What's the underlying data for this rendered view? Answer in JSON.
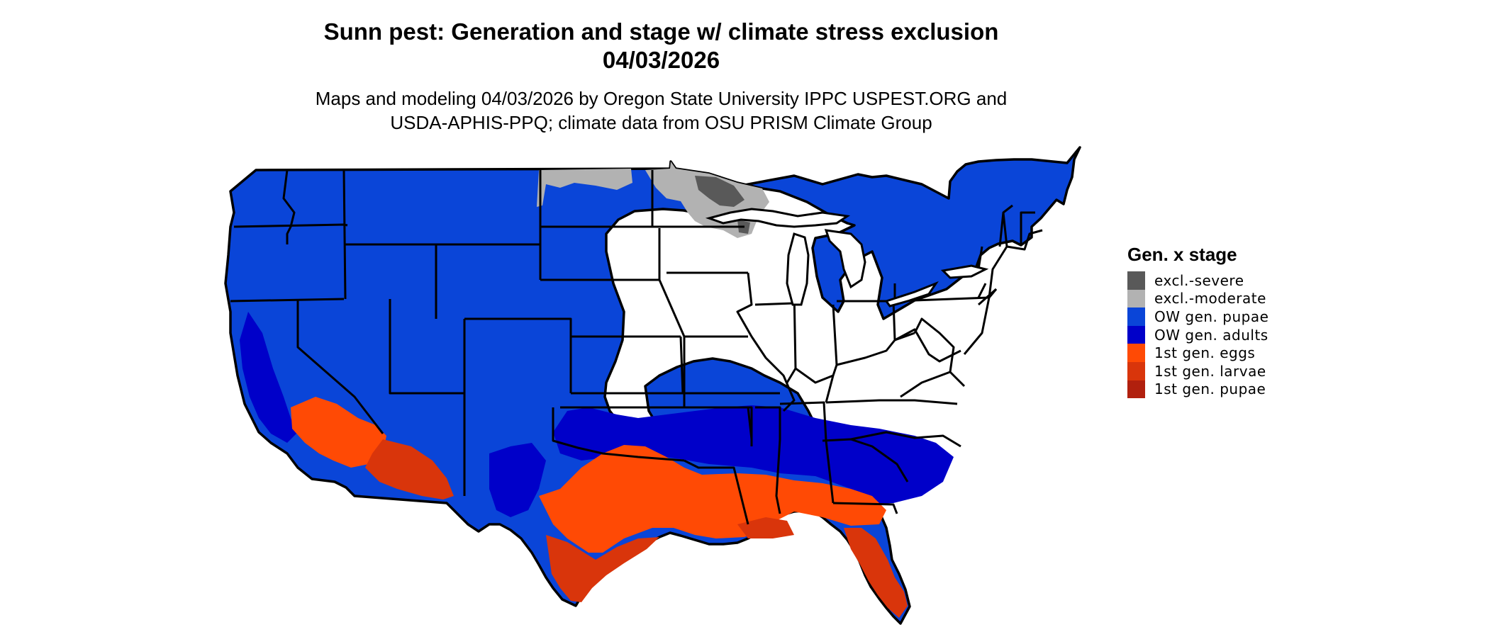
{
  "title_line1": "Sunn pest: Generation and stage w/ climate stress exclusion",
  "title_line2": "04/03/2026",
  "subtitle_line1": "Maps and modeling 04/03/2026 by Oregon State University IPPC USPEST.ORG and",
  "subtitle_line2": "USDA-APHIS-PPQ; climate data from OSU PRISM Climate Group",
  "legend": {
    "title": "Gen. x stage",
    "items": [
      {
        "label": "excl.-severe",
        "color": "#595959"
      },
      {
        "label": "excl.-moderate",
        "color": "#b2b2b2"
      },
      {
        "label": "OW gen. pupae",
        "color": "#0a45d8"
      },
      {
        "label": "OW gen. adults",
        "color": "#0000c9"
      },
      {
        "label": "1st gen. eggs",
        "color": "#ff4a05"
      },
      {
        "label": "1st gen. larvae",
        "color": "#d9350b"
      },
      {
        "label": "1st gen. pupae",
        "color": "#b1200e"
      }
    ]
  }
}
